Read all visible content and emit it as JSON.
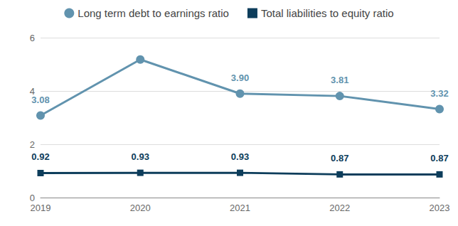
{
  "chart_data": {
    "type": "line",
    "categories": [
      "2019",
      "2020",
      "2021",
      "2022",
      "2023"
    ],
    "series": [
      {
        "name": "Long term debt to earnings ratio",
        "color": "#6193ae",
        "marker": "circle",
        "line_style": "solid",
        "values": [
          3.08,
          5.18,
          3.9,
          3.81,
          3.32
        ],
        "value_labels": [
          "3.08",
          null,
          "3.90",
          "3.81",
          "3.32"
        ]
      },
      {
        "name": "Total liabilities to equity ratio",
        "color": "#0d3d5b",
        "marker": "square",
        "line_style": "solid",
        "values": [
          0.92,
          0.93,
          0.93,
          0.87,
          0.87
        ],
        "value_labels": [
          "0.92",
          "0.93",
          "0.93",
          "0.87",
          "0.87"
        ]
      }
    ],
    "ylim": [
      0,
      6
    ],
    "yticks": [
      0,
      2,
      4,
      6
    ],
    "grid": true,
    "legend": "top",
    "data_labels": true
  }
}
